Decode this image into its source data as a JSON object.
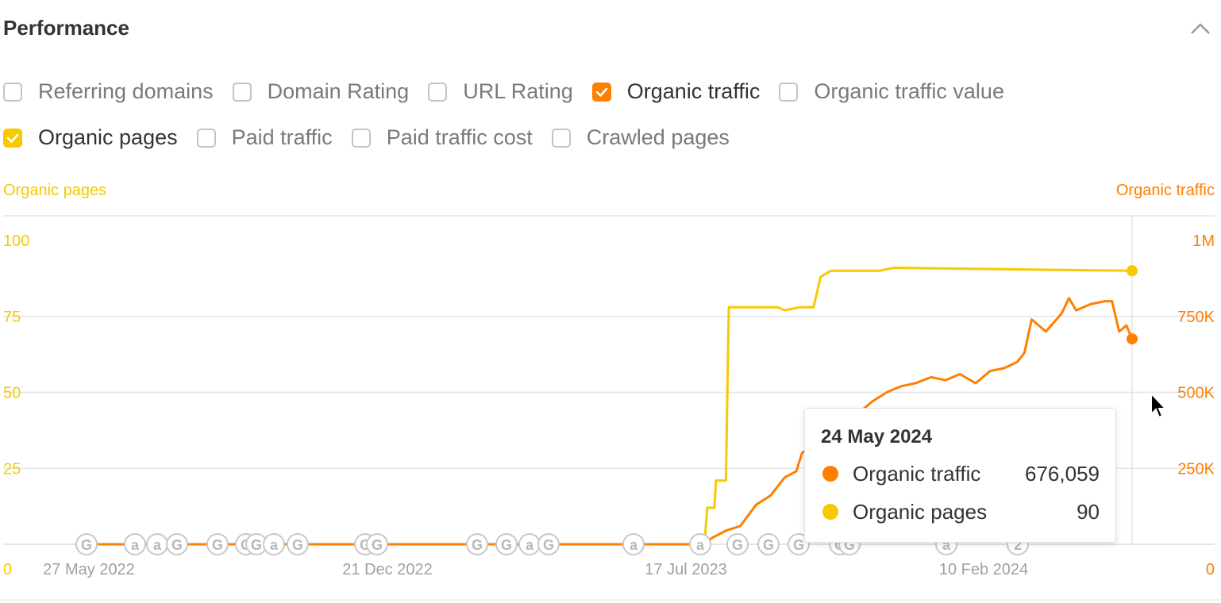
{
  "header": {
    "title": "Performance"
  },
  "checkboxes": {
    "row1": [
      {
        "label": "Referring domains",
        "checked": false
      },
      {
        "label": "Domain Rating",
        "checked": false
      },
      {
        "label": "URL Rating",
        "checked": false
      },
      {
        "label": "Organic traffic",
        "checked": true,
        "color": "#ff7f00"
      },
      {
        "label": "Organic traffic value",
        "checked": false
      }
    ],
    "row2": [
      {
        "label": "Organic pages",
        "checked": true,
        "color": "#f7c900"
      },
      {
        "label": "Paid traffic",
        "checked": false
      },
      {
        "label": "Paid traffic cost",
        "checked": false
      },
      {
        "label": "Crawled pages",
        "checked": false
      }
    ]
  },
  "colors": {
    "traffic": "#ff7f00",
    "pages": "#f7c900",
    "grid": "#e6e6e6",
    "tick": "#a0a0a0"
  },
  "chart_data": {
    "type": "line",
    "left_axis": {
      "label": "Organic pages",
      "ticks": [
        "0",
        "25",
        "50",
        "75",
        "100"
      ],
      "range": [
        0,
        100
      ]
    },
    "right_axis": {
      "label": "Organic traffic",
      "ticks": [
        "0",
        "250K",
        "500K",
        "750K",
        "1M"
      ],
      "range": [
        0,
        1000000
      ]
    },
    "x_ticks": [
      "27 May 2022",
      "21 Dec 2022",
      "17 Jul 2023",
      "10 Feb 2024"
    ],
    "x_range": [
      "2022-05-27",
      "2024-05-24"
    ],
    "grid": true,
    "series": [
      {
        "name": "Organic traffic",
        "axis": "right",
        "color": "#ff7f00",
        "points": [
          [
            "2022-05-27",
            0
          ],
          [
            "2023-07-31",
            0
          ],
          [
            "2023-08-05",
            20000
          ],
          [
            "2023-08-15",
            45000
          ],
          [
            "2023-08-25",
            60000
          ],
          [
            "2023-09-05",
            130000
          ],
          [
            "2023-09-15",
            160000
          ],
          [
            "2023-09-25",
            220000
          ],
          [
            "2023-10-03",
            240000
          ],
          [
            "2023-10-07",
            300000
          ],
          [
            "2023-10-15",
            330000
          ],
          [
            "2023-10-25",
            350000
          ],
          [
            "2023-11-05",
            380000
          ],
          [
            "2023-11-15",
            430000
          ],
          [
            "2023-11-25",
            470000
          ],
          [
            "2023-12-05",
            500000
          ],
          [
            "2023-12-15",
            520000
          ],
          [
            "2023-12-25",
            530000
          ],
          [
            "2024-01-05",
            550000
          ],
          [
            "2024-01-15",
            540000
          ],
          [
            "2024-01-25",
            560000
          ],
          [
            "2024-02-05",
            530000
          ],
          [
            "2024-02-15",
            570000
          ],
          [
            "2024-02-25",
            580000
          ],
          [
            "2024-03-05",
            600000
          ],
          [
            "2024-03-10",
            630000
          ],
          [
            "2024-03-15",
            740000
          ],
          [
            "2024-03-25",
            700000
          ],
          [
            "2024-04-05",
            760000
          ],
          [
            "2024-04-10",
            810000
          ],
          [
            "2024-04-15",
            770000
          ],
          [
            "2024-04-25",
            790000
          ],
          [
            "2024-05-05",
            800000
          ],
          [
            "2024-05-10",
            800000
          ],
          [
            "2024-05-15",
            700000
          ],
          [
            "2024-05-20",
            720000
          ],
          [
            "2024-05-24",
            676059
          ]
        ]
      },
      {
        "name": "Organic pages",
        "axis": "left",
        "color": "#f7c900",
        "points": [
          [
            "2022-05-27",
            0
          ],
          [
            "2023-07-31",
            0
          ],
          [
            "2023-08-02",
            12
          ],
          [
            "2023-08-07",
            12
          ],
          [
            "2023-08-08",
            21
          ],
          [
            "2023-08-15",
            21
          ],
          [
            "2023-08-17",
            78
          ],
          [
            "2023-09-20",
            78
          ],
          [
            "2023-09-25",
            77
          ],
          [
            "2023-10-05",
            78
          ],
          [
            "2023-10-15",
            78
          ],
          [
            "2023-10-20",
            88
          ],
          [
            "2023-10-27",
            90
          ],
          [
            "2023-11-30",
            90
          ],
          [
            "2023-12-10",
            91
          ],
          [
            "2024-05-24",
            90
          ]
        ]
      }
    ],
    "event_markers": [
      "G",
      "a",
      "a",
      "G",
      "G",
      "G",
      "G",
      "a",
      "G",
      "G",
      "G",
      "G",
      "G",
      "a",
      "G",
      "a",
      "a",
      "G",
      "G",
      "G",
      "G",
      "G",
      "a",
      "2"
    ],
    "tooltip": {
      "date": "24 May 2024",
      "rows": [
        {
          "name": "Organic traffic",
          "value": "676,059",
          "color": "#ff7f00"
        },
        {
          "name": "Organic pages",
          "value": "90",
          "color": "#f7c900"
        }
      ]
    }
  }
}
